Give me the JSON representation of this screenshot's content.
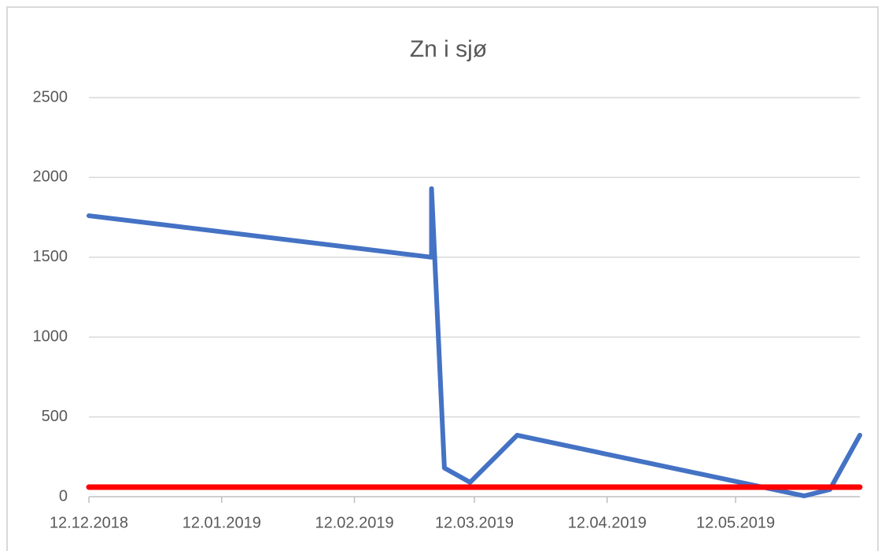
{
  "chart_data": {
    "type": "line",
    "title": "Zn i sjø",
    "series": [
      {
        "color": "#4472c4",
        "x": [
          "12.12.2018",
          "02.03.2019",
          "02.03.2019",
          "05.03.2019",
          "11.03.2019",
          "22.03.2019",
          "28.05.2019",
          "03.06.2019",
          "10.06.2019"
        ],
        "values": [
          1760,
          1500,
          1930,
          180,
          90,
          385,
          5,
          45,
          385
        ]
      },
      {
        "color": "#ff0000",
        "x": [
          "12.12.2018",
          "10.06.2019"
        ],
        "values": [
          60,
          60
        ]
      }
    ],
    "xlim": [
      "12.12.2018",
      "10.06.2019"
    ],
    "xticks": [
      "12.12.2018",
      "12.01.2019",
      "12.02.2019",
      "12.03.2019",
      "12.04.2019",
      "12.05.2019"
    ],
    "ylim": [
      0,
      2500
    ],
    "yticks": [
      0,
      500,
      1000,
      1500,
      2000,
      2500
    ],
    "grid": true
  }
}
